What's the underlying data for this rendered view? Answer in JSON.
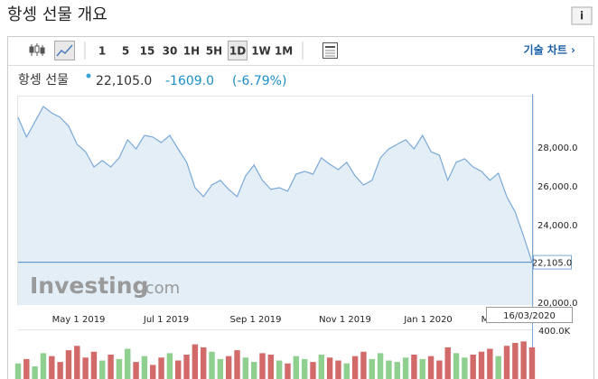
{
  "header": {
    "title": "항셍 선물 개요",
    "info_button": "i"
  },
  "toolbar": {
    "intervals": [
      "1",
      "5",
      "15",
      "30",
      "1H",
      "5H",
      "1D",
      "1W",
      "1M"
    ],
    "selected": 6,
    "advanced_chart": "기술 차트 ›"
  },
  "quote": {
    "name": "항셍 선물",
    "price": "22,105.0",
    "change": "-1609.0",
    "change_percent": "(-6.79%)"
  },
  "chart": {
    "ylim": [
      19900,
      30650
    ],
    "yticks": [
      {
        "value": 20000,
        "label": "20,000.0"
      },
      {
        "value": 24000,
        "label": "24,000.0"
      },
      {
        "value": 26000,
        "label": "26,000.0"
      },
      {
        "value": 28000,
        "label": "28,000.0"
      }
    ],
    "x_labels": [
      "May 1 2019",
      "Jul 1 2019",
      "Sep 1 2019",
      "Nov 1 2019",
      "Jan 1 2020",
      "M"
    ],
    "line_color": "#7aa9d8",
    "area_color": "#e4eef6",
    "price": {
      "values": [
        29580,
        28560,
        29350,
        30140,
        29810,
        29580,
        29120,
        28190,
        27810,
        27020,
        27350,
        27020,
        27490,
        28420,
        27950,
        28650,
        28560,
        28280,
        28650,
        27950,
        27260,
        25950,
        25490,
        26090,
        26330,
        25860,
        25490,
        26560,
        27120,
        26330,
        25860,
        25950,
        25770,
        26650,
        26790,
        26650,
        27490,
        27160,
        26880,
        27260,
        26560,
        26090,
        26330,
        27490,
        27950,
        28190,
        28420,
        27950,
        28650,
        27810,
        27630,
        26330,
        27260,
        27440,
        27020,
        26790,
        26330,
        26700,
        25490,
        24700,
        23440,
        22105
      ]
    },
    "current_price": {
      "value": 22105,
      "label": "22,105.0"
    },
    "crosshair_date": "16/03/2020",
    "logo": {
      "brand": "Investing",
      "domain": ".com"
    },
    "volume": {
      "ylim": [
        0,
        400000
      ],
      "yticks": [
        {
          "value": 400000,
          "label": "400.0K"
        }
      ],
      "up_color": "#8fcf8f",
      "down_color": "#d26a6a",
      "values": [
        180000,
        210000,
        160000,
        250000,
        230000,
        190000,
        270000,
        300000,
        220000,
        260000,
        200000,
        240000,
        210000,
        280000,
        190000,
        230000,
        170000,
        220000,
        250000,
        200000,
        240000,
        310000,
        290000,
        260000,
        210000,
        230000,
        270000,
        220000,
        190000,
        250000,
        240000,
        200000,
        180000,
        230000,
        210000,
        190000,
        240000,
        220000,
        200000,
        180000,
        230000,
        260000,
        210000,
        250000,
        200000,
        190000,
        220000,
        240000,
        210000,
        230000,
        200000,
        290000,
        250000,
        220000,
        240000,
        260000,
        280000,
        230000,
        300000,
        320000,
        330000,
        290000
      ]
    }
  }
}
